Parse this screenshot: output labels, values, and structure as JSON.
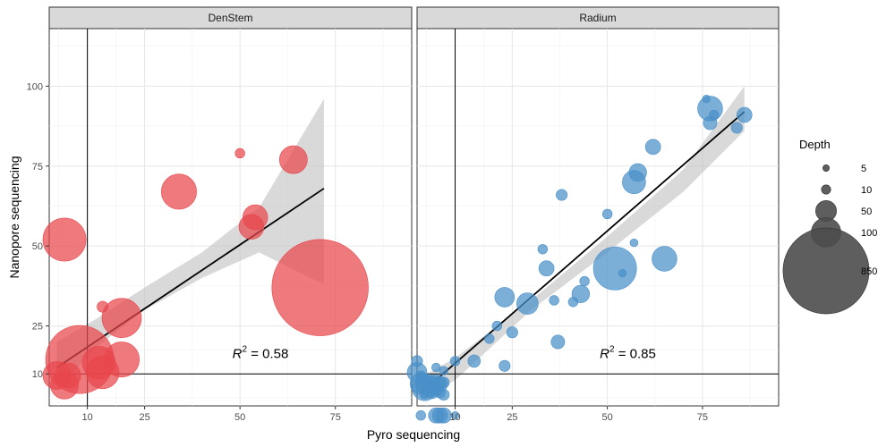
{
  "chart_data": {
    "type": "scatter",
    "xlabel": "Pyro sequencing",
    "ylabel": "Nanopore sequencing",
    "x_ticks": [
      10,
      25,
      50,
      75
    ],
    "y_ticks": [
      10,
      25,
      50,
      75,
      100
    ],
    "xlim": [
      0,
      95
    ],
    "ylim": [
      0,
      118
    ],
    "grid": true,
    "legend": {
      "title": "Depth",
      "position": "right",
      "entries": [
        {
          "label": "5",
          "depth": 5
        },
        {
          "label": "10",
          "depth": 10
        },
        {
          "label": "50",
          "depth": 50
        },
        {
          "label": "100",
          "depth": 100
        },
        {
          "label": "850",
          "depth": 850
        }
      ]
    },
    "panels": [
      {
        "strip": "DenStem",
        "color": "#e8474c",
        "r2_label": "R² = 0.58",
        "r2_value": "0.58",
        "r2_prefix": "R",
        "r2_sup": "2",
        "r2_suffix": " = 0.58",
        "r2_pos": {
          "x": 48,
          "y": 15
        },
        "vline": 10,
        "hline": 10,
        "fit": {
          "x0": 2,
          "y0": 12,
          "x1": 72,
          "y1": 68
        },
        "ribbon_upper": [
          [
            2,
            20
          ],
          [
            12,
            27
          ],
          [
            25,
            37
          ],
          [
            40,
            48
          ],
          [
            55,
            62
          ],
          [
            72,
            96
          ]
        ],
        "ribbon_lower": [
          [
            2,
            5
          ],
          [
            12,
            18
          ],
          [
            25,
            30
          ],
          [
            40,
            40
          ],
          [
            55,
            48
          ],
          [
            72,
            38
          ]
        ],
        "points": [
          {
            "x": 2,
            "y": 9.5,
            "depth": 50
          },
          {
            "x": 5,
            "y": 9.5,
            "depth": 40
          },
          {
            "x": 4,
            "y": 6.5,
            "depth": 50
          },
          {
            "x": 4,
            "y": 52,
            "depth": 120
          },
          {
            "x": 8,
            "y": 14.5,
            "depth": 300
          },
          {
            "x": 13,
            "y": 13.5,
            "depth": 70
          },
          {
            "x": 14,
            "y": 10.5,
            "depth": 70
          },
          {
            "x": 14,
            "y": 31,
            "depth": 8
          },
          {
            "x": 19,
            "y": 27.5,
            "depth": 100
          },
          {
            "x": 19,
            "y": 14.5,
            "depth": 80
          },
          {
            "x": 34,
            "y": 67,
            "depth": 80
          },
          {
            "x": 50,
            "y": 79,
            "depth": 6
          },
          {
            "x": 53,
            "y": 56,
            "depth": 40
          },
          {
            "x": 54,
            "y": 59,
            "depth": 40
          },
          {
            "x": 64,
            "y": 77,
            "depth": 50
          },
          {
            "x": 71,
            "y": 37,
            "depth": 600
          }
        ]
      },
      {
        "strip": "Radium",
        "color": "#4a90c9",
        "r2_label": "R² = 0.85",
        "r2_value": "0.85",
        "r2_prefix": "R",
        "r2_sup": "2",
        "r2_suffix": " = 0.85",
        "r2_pos": {
          "x": 48,
          "y": 15
        },
        "vline": 10,
        "hline": 10,
        "fit": {
          "x0": 1,
          "y0": 4,
          "x1": 86,
          "y1": 92
        },
        "ribbon_upper": [
          [
            1,
            9
          ],
          [
            10,
            15
          ],
          [
            30,
            33
          ],
          [
            50,
            53
          ],
          [
            70,
            74
          ],
          [
            86,
            100
          ]
        ],
        "ribbon_lower": [
          [
            1,
            2
          ],
          [
            10,
            8
          ],
          [
            30,
            30
          ],
          [
            50,
            48
          ],
          [
            70,
            67
          ],
          [
            86,
            86
          ]
        ],
        "points": [
          {
            "x": 0,
            "y": 14,
            "depth": 8
          },
          {
            "x": 0,
            "y": 10.5,
            "depth": 25
          },
          {
            "x": 1,
            "y": 9.5,
            "depth": 6
          },
          {
            "x": 1,
            "y": 7,
            "depth": 30
          },
          {
            "x": 2,
            "y": 6.5,
            "depth": 20
          },
          {
            "x": 2,
            "y": 5.5,
            "depth": 40
          },
          {
            "x": 3,
            "y": 6.8,
            "depth": 25
          },
          {
            "x": 3,
            "y": 4.8,
            "depth": 12
          },
          {
            "x": 4,
            "y": 6.5,
            "depth": 20
          },
          {
            "x": 4,
            "y": 4,
            "depth": 8
          },
          {
            "x": 5,
            "y": 7,
            "depth": 20
          },
          {
            "x": 5,
            "y": 5.2,
            "depth": 12
          },
          {
            "x": 6,
            "y": 6.8,
            "depth": 15
          },
          {
            "x": 6,
            "y": 4.2,
            "depth": 8
          },
          {
            "x": 7,
            "y": 7.3,
            "depth": 8
          },
          {
            "x": 2,
            "y": 3.5,
            "depth": 5
          },
          {
            "x": 5,
            "y": 12,
            "depth": 5
          },
          {
            "x": 7,
            "y": 11,
            "depth": 5
          },
          {
            "x": 7,
            "y": 3.5,
            "depth": 8
          },
          {
            "x": 1,
            "y": -3,
            "depth": 6
          },
          {
            "x": 5,
            "y": -3,
            "depth": 15
          },
          {
            "x": 6,
            "y": -3,
            "depth": 15
          },
          {
            "x": 7,
            "y": -3,
            "depth": 15
          },
          {
            "x": 10,
            "y": -3,
            "depth": 4
          },
          {
            "x": 10,
            "y": 14,
            "depth": 6
          },
          {
            "x": 15,
            "y": 14,
            "depth": 10
          },
          {
            "x": 19,
            "y": 21,
            "depth": 6
          },
          {
            "x": 21,
            "y": 25,
            "depth": 6
          },
          {
            "x": 23,
            "y": 12.5,
            "depth": 8
          },
          {
            "x": 23,
            "y": 34,
            "depth": 25
          },
          {
            "x": 25,
            "y": 23,
            "depth": 8
          },
          {
            "x": 29,
            "y": 32,
            "depth": 30
          },
          {
            "x": 33,
            "y": 49,
            "depth": 6
          },
          {
            "x": 34,
            "y": 43,
            "depth": 15
          },
          {
            "x": 36,
            "y": 33,
            "depth": 6
          },
          {
            "x": 37,
            "y": 20,
            "depth": 12
          },
          {
            "x": 38,
            "y": 66,
            "depth": 8
          },
          {
            "x": 41,
            "y": 32.5,
            "depth": 6
          },
          {
            "x": 43,
            "y": 35,
            "depth": 20
          },
          {
            "x": 44,
            "y": 39,
            "depth": 6
          },
          {
            "x": 50,
            "y": 60,
            "depth": 6
          },
          {
            "x": 52,
            "y": 43,
            "depth": 120
          },
          {
            "x": 54,
            "y": 41.5,
            "depth": 4
          },
          {
            "x": 57,
            "y": 51,
            "depth": 4
          },
          {
            "x": 57,
            "y": 70,
            "depth": 35
          },
          {
            "x": 58,
            "y": 73,
            "depth": 20
          },
          {
            "x": 62,
            "y": 81,
            "depth": 15
          },
          {
            "x": 65,
            "y": 46,
            "depth": 40
          },
          {
            "x": 76,
            "y": 96,
            "depth": 4
          },
          {
            "x": 77,
            "y": 93,
            "depth": 40
          },
          {
            "x": 77,
            "y": 88.5,
            "depth": 12
          },
          {
            "x": 78,
            "y": 91,
            "depth": 6
          },
          {
            "x": 84,
            "y": 87,
            "depth": 8
          },
          {
            "x": 86,
            "y": 91,
            "depth": 15
          }
        ]
      }
    ]
  }
}
